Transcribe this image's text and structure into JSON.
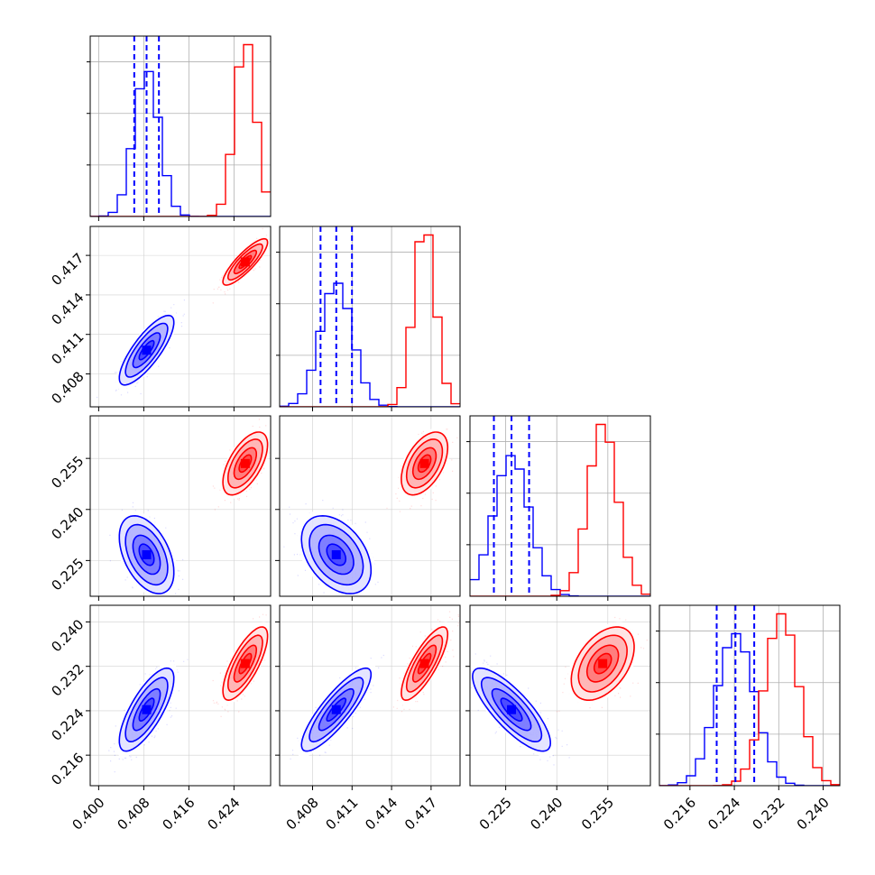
{
  "chart_data": {
    "type": "corner",
    "title": "",
    "n_params": 4,
    "series": [
      {
        "color": "#0000ff",
        "mean": [
          0.4085,
          0.4098,
          0.2267,
          0.2242
        ],
        "std": [
          0.0022,
          0.0012,
          0.0052,
          0.0034
        ],
        "corr": [
          [
            1.0,
            0.8,
            -0.45,
            0.75
          ],
          [
            0.8,
            1.0,
            -0.4,
            0.85
          ],
          [
            -0.45,
            -0.4,
            1.0,
            -0.8
          ],
          [
            0.75,
            0.85,
            -0.8,
            1.0
          ]
        ],
        "quantiles_shown": [
          0.16,
          0.5,
          0.84
        ]
      },
      {
        "color": "#ff0000",
        "mean": [
          0.426,
          0.4165,
          0.2535,
          0.2325
        ],
        "std": [
          0.0018,
          0.0008,
          0.0042,
          0.003
        ],
        "corr": [
          [
            1.0,
            0.85,
            0.6,
            0.75
          ],
          [
            0.85,
            1.0,
            0.5,
            0.8
          ],
          [
            0.6,
            0.5,
            1.0,
            0.45
          ],
          [
            0.75,
            0.8,
            0.45,
            1.0
          ]
        ]
      }
    ],
    "axis_ranges": [
      [
        0.3985,
        0.4305
      ],
      [
        0.4055,
        0.4192
      ],
      [
        0.2145,
        0.2675
      ],
      [
        0.2105,
        0.243
      ]
    ],
    "ticks": [
      {
        "values": [
          0.4,
          0.408,
          0.416,
          0.424
        ],
        "labels": [
          "0.400",
          "0.408",
          "0.416",
          "0.424"
        ]
      },
      {
        "values": [
          0.408,
          0.411,
          0.414,
          0.417
        ],
        "labels": [
          "0.408",
          "0.411",
          "0.414",
          "0.417"
        ]
      },
      {
        "values": [
          0.225,
          0.24,
          0.255
        ],
        "labels": [
          "0.225",
          "0.240",
          "0.255"
        ]
      },
      {
        "values": [
          0.216,
          0.224,
          0.232,
          0.24
        ],
        "labels": [
          "0.216",
          "0.224",
          "0.232",
          "0.240"
        ]
      }
    ],
    "grid": true,
    "legend": "none"
  }
}
